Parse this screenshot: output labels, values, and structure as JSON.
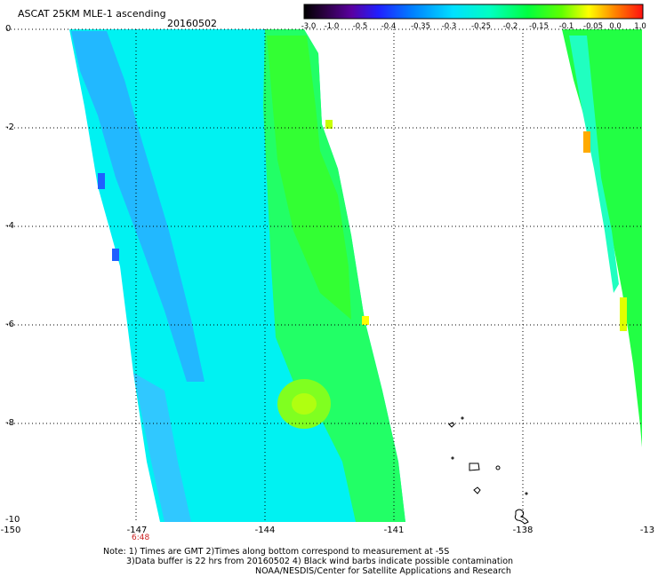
{
  "header": {
    "title": "ASCAT 25KM MLE-1 ascending",
    "date": "20160502"
  },
  "colorbar": {
    "labels": [
      "-3.0",
      "-1.0",
      "-0.5",
      "-0.4",
      "-0.35",
      "-0.3",
      "-0.25",
      "-0.2",
      "-0.15",
      "-0.1",
      "-0.05",
      "0.0",
      "1.0"
    ]
  },
  "axes": {
    "lat_labels": [
      "0",
      "-2",
      "-4",
      "-6",
      "-8",
      "-10"
    ],
    "lon_labels": [
      "-150",
      "-147",
      "-144",
      "-141",
      "-138",
      "-13"
    ]
  },
  "time_label": "6:48",
  "notes": {
    "line1": "Note: 1) Times are GMT 2)Times along bottom correspond to measurement at -5S",
    "line2": "3)Data buffer is 22 hrs from 20160502 4) Black wind barbs indicate possible contamination",
    "line3": "NOAA/NESDIS/Center for Satellite Applications and Research"
  },
  "colors": {
    "background": "#ffffff",
    "cyan": "#00ffff",
    "green": "#33ff33",
    "blue": "#1e90ff",
    "yellow": "#ffff00",
    "orange": "#ff8800"
  }
}
